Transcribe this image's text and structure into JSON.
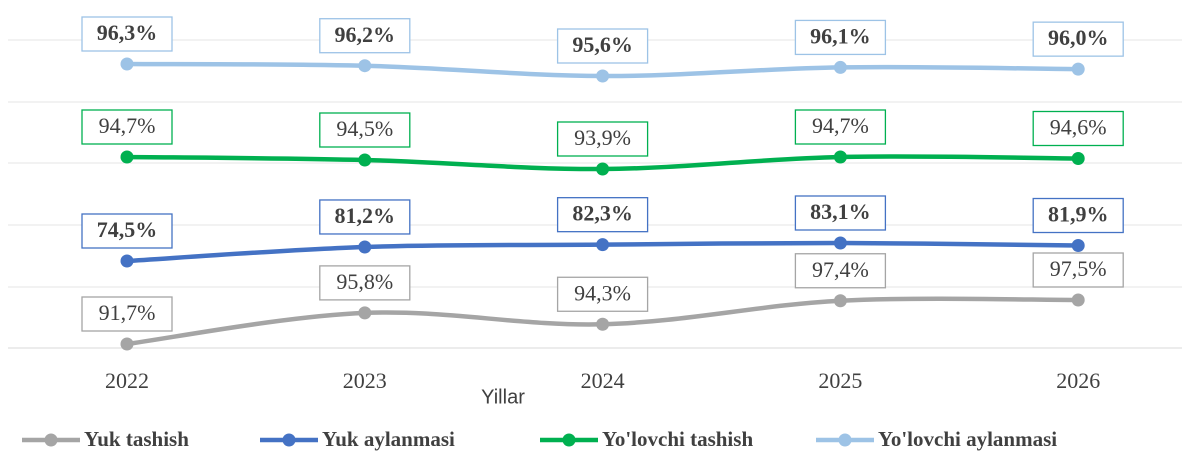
{
  "chart_data": {
    "type": "line",
    "categories": [
      "2022",
      "2023",
      "2024",
      "2025",
      "2026"
    ],
    "x_label": "Yillar",
    "series": [
      {
        "name": "Yuk tashish",
        "color": "#a5a5a5",
        "values": [
          91.7,
          95.8,
          94.3,
          97.4,
          97.5
        ],
        "value_labels": [
          "91,7%",
          "95,8%",
          "94,3%",
          "97,4%",
          "97,5%"
        ]
      },
      {
        "name": "Yuk aylanmasi",
        "color": "#4472c4",
        "values": [
          74.5,
          81.2,
          82.3,
          83.1,
          81.9
        ],
        "value_labels": [
          "74,5%",
          "81,2%",
          "82,3%",
          "83,1%",
          "81,9%"
        ]
      },
      {
        "name": "Yo'lovchi tashish",
        "color": "#00b050",
        "values": [
          94.7,
          94.5,
          93.9,
          94.7,
          94.6
        ],
        "value_labels": [
          "94,7%",
          "94,5%",
          "93,9%",
          "94,7%",
          "94,6%"
        ]
      },
      {
        "name": "Yo'lovchi aylanmasi",
        "color": "#9dc3e6",
        "values": [
          96.3,
          96.2,
          95.6,
          96.1,
          96.0
        ],
        "value_labels": [
          "96,3%",
          "96,2%",
          "95,6%",
          "96,1%",
          "96,0%"
        ]
      }
    ],
    "legend": "bottom"
  }
}
